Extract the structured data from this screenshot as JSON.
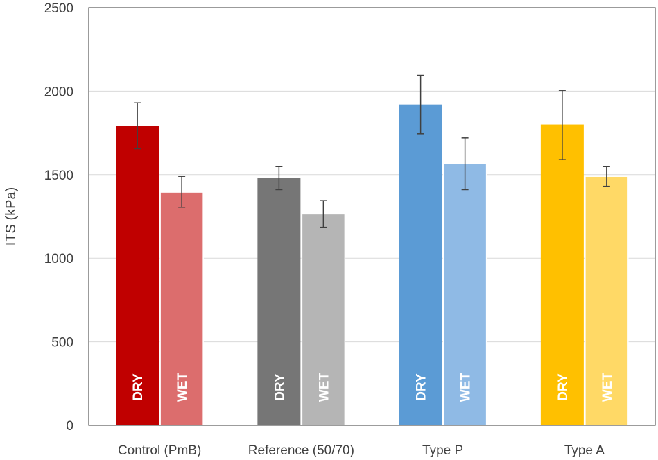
{
  "chart_data": {
    "type": "bar",
    "title": "",
    "xlabel": "",
    "ylabel": "ITS (kPa)",
    "ylim": [
      0,
      2500
    ],
    "yticks": [
      0,
      500,
      1000,
      1500,
      2000,
      2500
    ],
    "grid": true,
    "legend": "none",
    "categories": [
      "Control (PmB)",
      "Reference (50/70)",
      "Type P",
      "Type A"
    ],
    "series": [
      {
        "name": "DRY",
        "values": [
          1790,
          1480,
          1920,
          1800
        ],
        "error_low": [
          1655,
          1410,
          1745,
          1590
        ],
        "error_high": [
          1930,
          1550,
          2095,
          2005
        ],
        "colors": [
          "#c00000",
          "#767676",
          "#5b9bd5",
          "#ffc000"
        ]
      },
      {
        "name": "WET",
        "values": [
          1395,
          1265,
          1565,
          1490
        ],
        "error_low": [
          1305,
          1185,
          1410,
          1430
        ],
        "error_high": [
          1490,
          1345,
          1720,
          1550
        ],
        "colors": [
          "#dc6d6d",
          "#b5b5b5",
          "#8fbae5",
          "#ffd966"
        ]
      }
    ]
  }
}
